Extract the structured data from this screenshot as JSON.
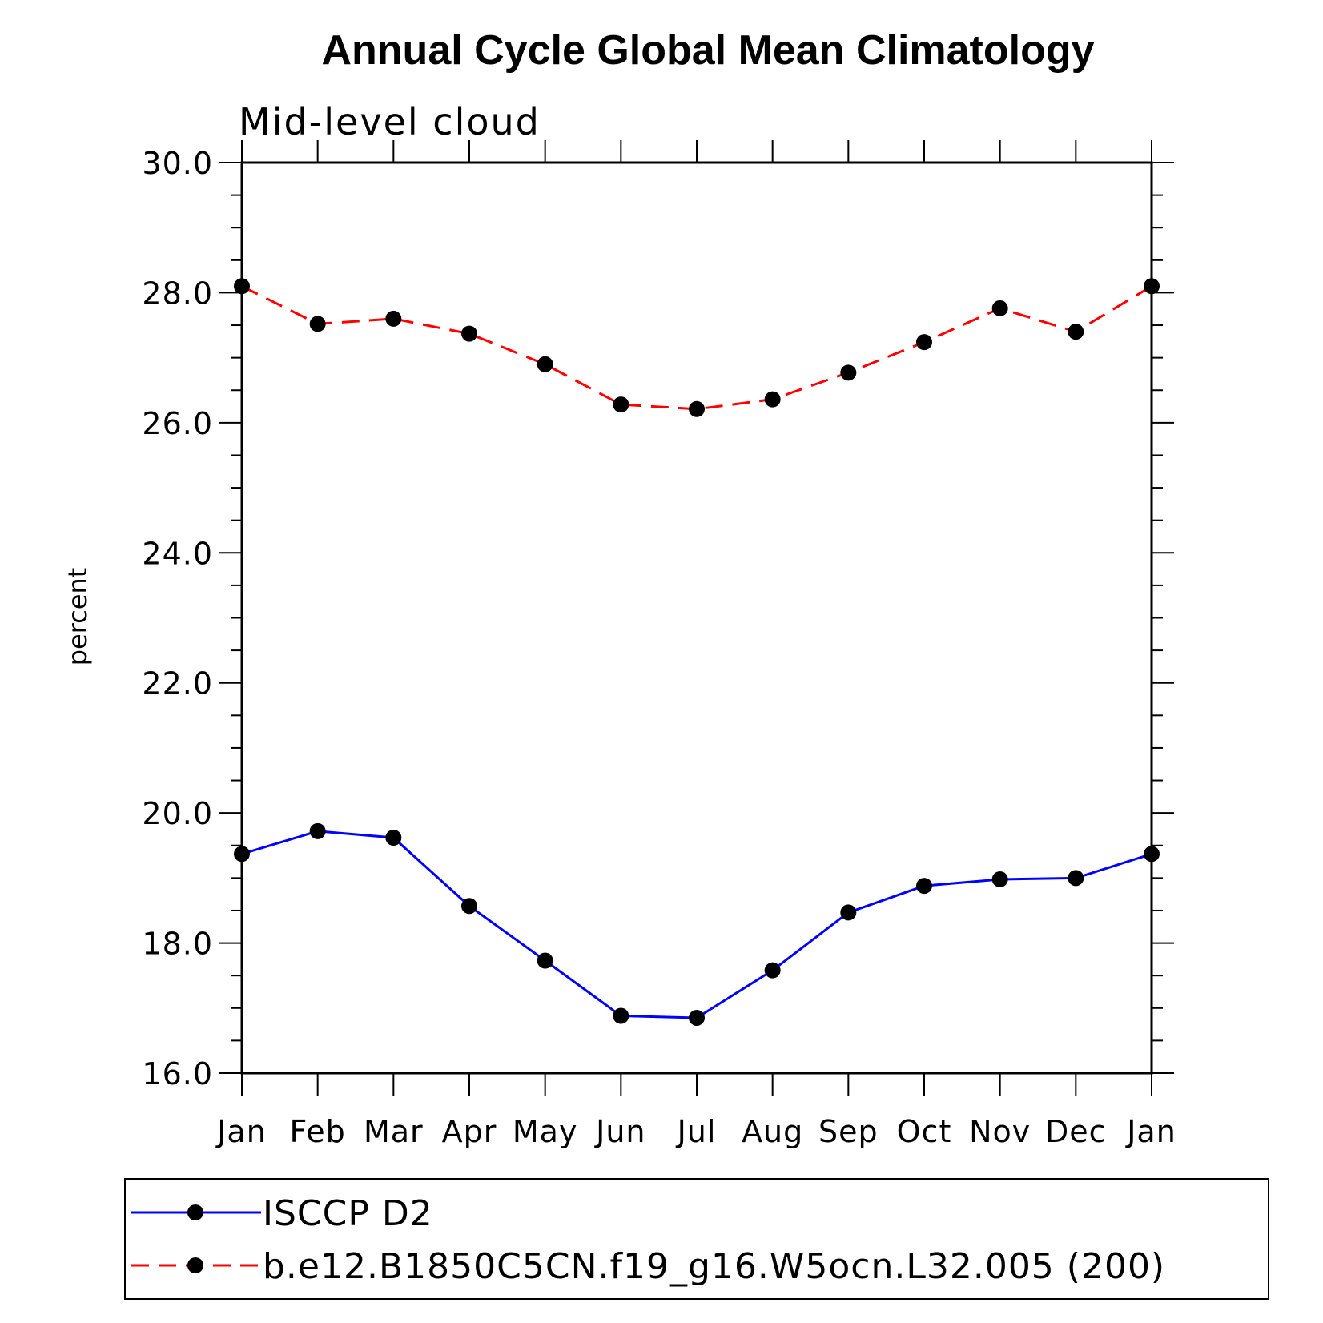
{
  "chart_data": {
    "type": "line",
    "title": "Annual Cycle Global Mean Climatology",
    "subtitle": "Mid-level cloud",
    "xlabel": "",
    "ylabel": "percent",
    "categories": [
      "Jan",
      "Feb",
      "Mar",
      "Apr",
      "May",
      "Jun",
      "Jul",
      "Aug",
      "Sep",
      "Oct",
      "Nov",
      "Dec",
      "Jan"
    ],
    "ylim": [
      16.0,
      30.0
    ],
    "yticks": [
      "16.0",
      "18.0",
      "20.0",
      "22.0",
      "24.0",
      "26.0",
      "28.0",
      "30.0"
    ],
    "yminor_step": 0.5,
    "grid": false,
    "legend_position": "bottom",
    "series": [
      {
        "name": "ISCCP D2",
        "color": "#0000ff",
        "line_style": "solid",
        "marker": "circle",
        "values": [
          19.37,
          19.72,
          19.62,
          18.57,
          17.73,
          16.88,
          16.85,
          17.58,
          18.47,
          18.88,
          18.98,
          19.0,
          19.37
        ]
      },
      {
        "name": "b.e12.B1850C5CN.f19_g16.W5ocn.L32.005 (200)",
        "color": "#ff0000",
        "line_style": "dashed",
        "marker": "circle",
        "values": [
          28.1,
          27.52,
          27.6,
          27.37,
          26.9,
          26.28,
          26.21,
          26.36,
          26.77,
          27.24,
          27.76,
          27.4,
          28.1
        ]
      }
    ]
  }
}
